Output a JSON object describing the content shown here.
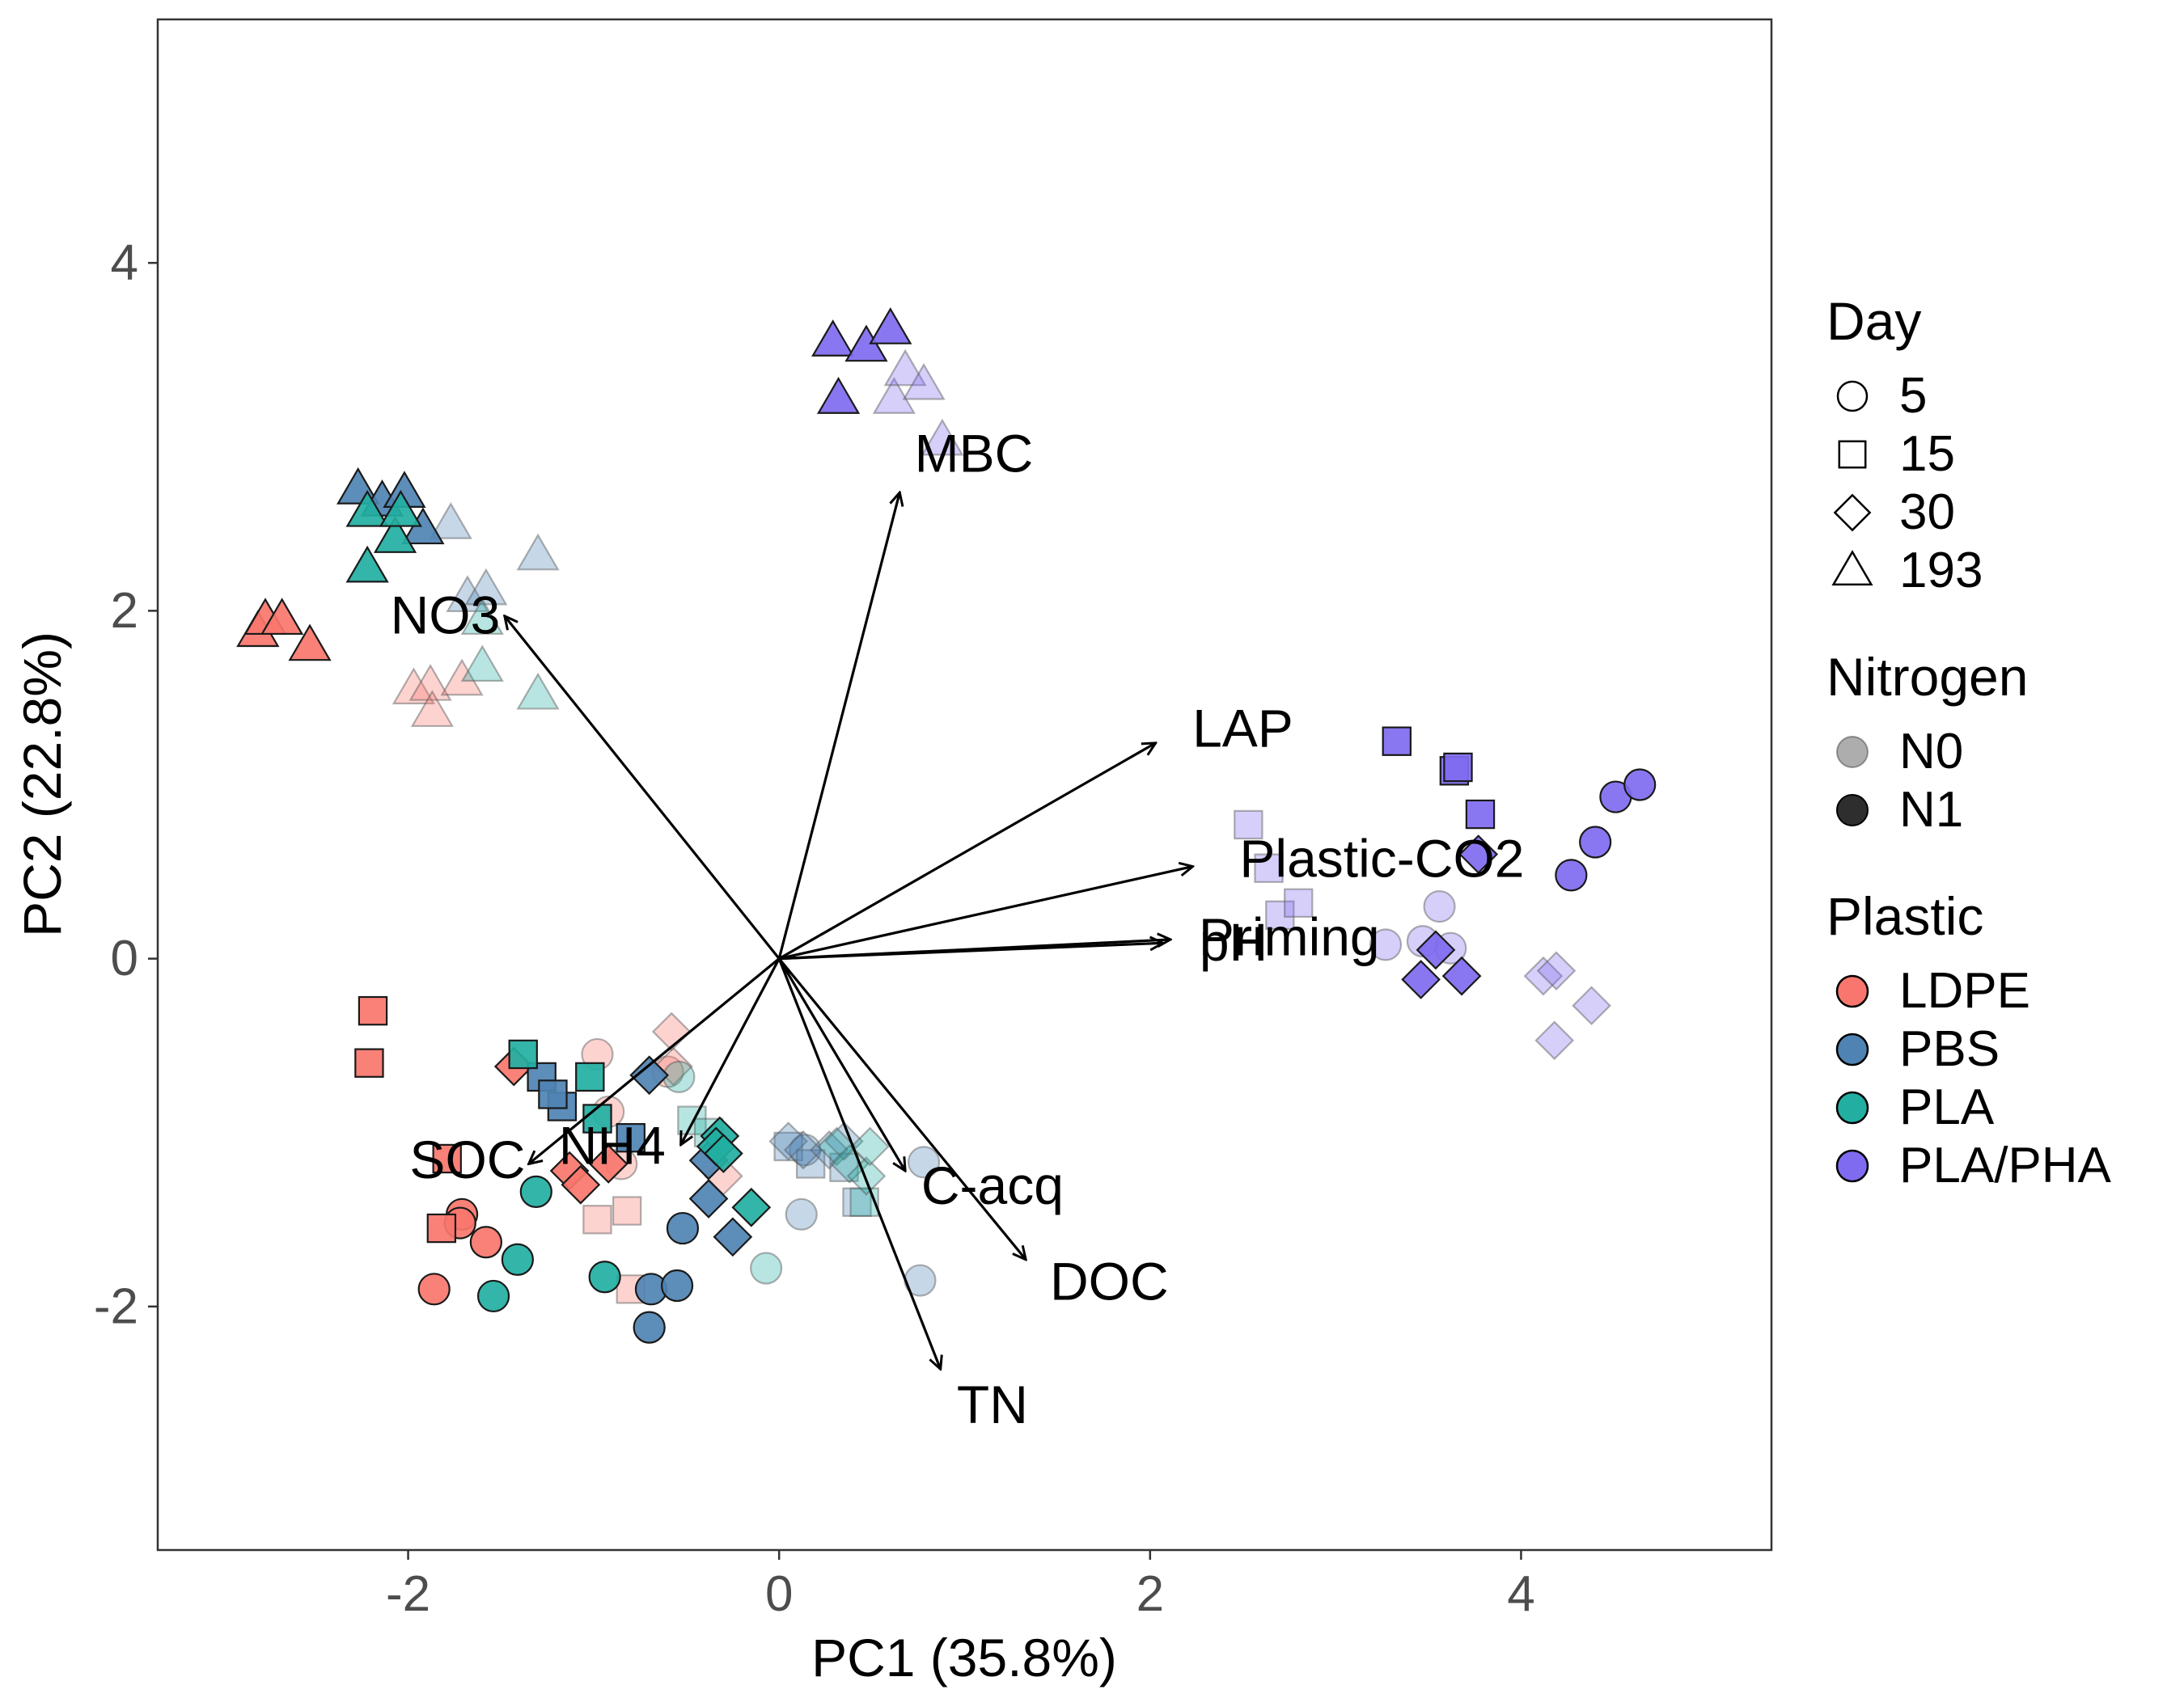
{
  "colors": {
    "LDPE": "#F8766D",
    "PBS": "#4F83B3",
    "PLA": "#22AFA2",
    "PLA/PHA": "#7F6BF0",
    "axis": "#333333",
    "ticks": "#4d4d4d",
    "background": "#ffffff"
  },
  "chart_data": {
    "type": "scatter",
    "subtype": "PCA biplot",
    "xlabel": "PC1 (35.8%)",
    "ylabel": "PC2 (22.8%)",
    "xlim": [
      -3.35,
      5.35
    ],
    "ylim": [
      -3.4,
      5.4
    ],
    "xticks": [
      -2,
      0,
      2,
      4
    ],
    "yticks": [
      -2,
      0,
      2,
      4
    ],
    "xtick_labels": [
      "-2",
      "0",
      "2",
      "4"
    ],
    "ytick_labels": [
      "-2",
      "0",
      "2",
      "4"
    ],
    "grid": false,
    "legend_position": "right",
    "legends": [
      {
        "title": "Day",
        "kind": "shape",
        "entries": [
          {
            "label": "5",
            "shape": "circle"
          },
          {
            "label": "15",
            "shape": "square"
          },
          {
            "label": "30",
            "shape": "diamond"
          },
          {
            "label": "193",
            "shape": "triangle"
          }
        ]
      },
      {
        "title": "Nitrogen",
        "kind": "alpha",
        "entries": [
          {
            "label": "N0",
            "alpha": 0.35
          },
          {
            "label": "N1",
            "alpha": 1.0
          }
        ]
      },
      {
        "title": "Plastic",
        "kind": "color",
        "entries": [
          {
            "label": "LDPE",
            "color": "#F8766D"
          },
          {
            "label": "PBS",
            "color": "#4F83B3"
          },
          {
            "label": "PLA",
            "color": "#22AFA2"
          },
          {
            "label": "PLA/PHA",
            "color": "#7F6BF0"
          }
        ]
      }
    ],
    "loadings": [
      {
        "label": "MBC",
        "x": 0.65,
        "y": 2.68,
        "label_x": 1.05,
        "label_y": 2.88
      },
      {
        "label": "NO3",
        "x": -1.48,
        "y": 1.97,
        "label_x": -1.8,
        "label_y": 1.95
      },
      {
        "label": "LAP",
        "x": 2.03,
        "y": 1.24,
        "label_x": 2.5,
        "label_y": 1.3
      },
      {
        "label": "Plastic-CO2",
        "x": 2.23,
        "y": 0.53,
        "label_x": 3.25,
        "label_y": 0.55
      },
      {
        "label": "Priming",
        "x": 2.11,
        "y": 0.11,
        "label_x": 2.75,
        "label_y": 0.1
      },
      {
        "label": "pH",
        "x": 2.07,
        "y": 0.09,
        "label_x": 2.45,
        "label_y": 0.07
      },
      {
        "label": "C-acq",
        "x": 0.68,
        "y": -1.22,
        "label_x": 1.15,
        "label_y": -1.33
      },
      {
        "label": "DOC",
        "x": 1.33,
        "y": -1.73,
        "label_x": 1.78,
        "label_y": -1.88
      },
      {
        "label": "TN",
        "x": 0.87,
        "y": -2.36,
        "label_x": 1.15,
        "label_y": -2.59
      },
      {
        "label": "SOC",
        "x": -1.35,
        "y": -1.18,
        "label_x": -1.68,
        "label_y": -1.18
      },
      {
        "label": "NH4",
        "x": -0.53,
        "y": -1.07,
        "label_x": -0.9,
        "label_y": -1.1
      }
    ],
    "series": [
      {
        "plastic": "LDPE",
        "day": "5",
        "nitrogen": "N0",
        "points": [
          [
            -0.98,
            -0.55
          ],
          [
            -0.92,
            -0.88
          ],
          [
            -0.85,
            -1.18
          ],
          [
            -0.6,
            -0.65
          ]
        ]
      },
      {
        "plastic": "LDPE",
        "day": "5",
        "nitrogen": "N1",
        "points": [
          [
            -1.86,
            -1.9
          ],
          [
            -1.71,
            -1.47
          ],
          [
            -1.72,
            -1.52
          ],
          [
            -1.58,
            -1.63
          ]
        ]
      },
      {
        "plastic": "LDPE",
        "day": "15",
        "nitrogen": "N0",
        "points": [
          [
            -0.98,
            -1.5
          ],
          [
            -0.82,
            -1.45
          ],
          [
            -0.8,
            -1.9
          ]
        ]
      },
      {
        "plastic": "LDPE",
        "day": "15",
        "nitrogen": "N1",
        "points": [
          [
            -2.19,
            -0.3
          ],
          [
            -2.21,
            -0.6
          ],
          [
            -1.79,
            -1.15
          ],
          [
            -1.82,
            -1.55
          ]
        ]
      },
      {
        "plastic": "LDPE",
        "day": "30",
        "nitrogen": "N0",
        "points": [
          [
            -0.58,
            -0.42
          ],
          [
            -0.57,
            -0.62
          ],
          [
            -0.3,
            -1.25
          ]
        ]
      },
      {
        "plastic": "LDPE",
        "day": "30",
        "nitrogen": "N1",
        "points": [
          [
            -1.43,
            -0.62
          ],
          [
            -1.13,
            -1.22
          ],
          [
            -1.07,
            -1.3
          ],
          [
            -0.92,
            -1.18
          ]
        ]
      },
      {
        "plastic": "LDPE",
        "day": "193",
        "nitrogen": "N0",
        "points": [
          [
            -1.97,
            1.55
          ],
          [
            -1.88,
            1.57
          ],
          [
            -1.87,
            1.42
          ],
          [
            -1.71,
            1.6
          ]
        ]
      },
      {
        "plastic": "LDPE",
        "day": "193",
        "nitrogen": "N1",
        "points": [
          [
            -2.81,
            1.88
          ],
          [
            -2.77,
            1.95
          ],
          [
            -2.68,
            1.95
          ],
          [
            -2.53,
            1.8
          ]
        ]
      },
      {
        "plastic": "PBS",
        "day": "5",
        "nitrogen": "N0",
        "points": [
          [
            0.14,
            -1.1
          ],
          [
            0.12,
            -1.47
          ],
          [
            0.78,
            -1.17
          ],
          [
            0.76,
            -1.85
          ]
        ]
      },
      {
        "plastic": "PBS",
        "day": "5",
        "nitrogen": "N1",
        "points": [
          [
            -0.69,
            -1.9
          ],
          [
            -0.55,
            -1.88
          ],
          [
            -0.52,
            -1.55
          ],
          [
            -0.7,
            -2.12
          ]
        ]
      },
      {
        "plastic": "PBS",
        "day": "15",
        "nitrogen": "N0",
        "points": [
          [
            0.05,
            -1.08
          ],
          [
            0.17,
            -1.18
          ],
          [
            0.42,
            -1.4
          ],
          [
            0.35,
            -1.2
          ]
        ]
      },
      {
        "plastic": "PBS",
        "day": "15",
        "nitrogen": "N1",
        "points": [
          [
            -1.28,
            -0.68
          ],
          [
            -1.17,
            -0.85
          ],
          [
            -1.22,
            -0.78
          ],
          [
            -0.8,
            -1.03
          ]
        ]
      },
      {
        "plastic": "PBS",
        "day": "30",
        "nitrogen": "N0",
        "points": [
          [
            0.05,
            -1.05
          ],
          [
            0.13,
            -1.1
          ],
          [
            0.27,
            -1.1
          ],
          [
            0.35,
            -1.05
          ]
        ]
      },
      {
        "plastic": "PBS",
        "day": "30",
        "nitrogen": "N1",
        "points": [
          [
            -0.7,
            -0.67
          ],
          [
            -0.38,
            -1.16
          ],
          [
            -0.38,
            -1.38
          ],
          [
            -0.25,
            -1.6
          ]
        ]
      },
      {
        "plastic": "PBS",
        "day": "193",
        "nitrogen": "N0",
        "points": [
          [
            -1.77,
            2.5
          ],
          [
            -1.68,
            2.08
          ],
          [
            -1.58,
            2.12
          ],
          [
            -1.3,
            2.32
          ]
        ]
      },
      {
        "plastic": "PBS",
        "day": "193",
        "nitrogen": "N1",
        "points": [
          [
            -2.27,
            2.7
          ],
          [
            -2.14,
            2.63
          ],
          [
            -2.02,
            2.68
          ],
          [
            -1.92,
            2.47
          ]
        ]
      },
      {
        "plastic": "PLA",
        "day": "5",
        "nitrogen": "N0",
        "points": [
          [
            -0.54,
            -0.68
          ],
          [
            -0.07,
            -1.78
          ]
        ]
      },
      {
        "plastic": "PLA",
        "day": "5",
        "nitrogen": "N1",
        "points": [
          [
            -1.31,
            -1.34
          ],
          [
            -1.41,
            -1.73
          ],
          [
            -1.54,
            -1.94
          ],
          [
            -0.94,
            -1.83
          ]
        ]
      },
      {
        "plastic": "PLA",
        "day": "15",
        "nitrogen": "N0",
        "points": [
          [
            -0.47,
            -0.93
          ],
          [
            -0.38,
            -1.0
          ],
          [
            0.46,
            -1.4
          ]
        ]
      },
      {
        "plastic": "PLA",
        "day": "15",
        "nitrogen": "N1",
        "points": [
          [
            -1.38,
            -0.55
          ],
          [
            -1.02,
            -0.68
          ],
          [
            -0.98,
            -0.92
          ]
        ]
      },
      {
        "plastic": "PLA",
        "day": "30",
        "nitrogen": "N0",
        "points": [
          [
            0.31,
            -1.08
          ],
          [
            0.38,
            -1.18
          ],
          [
            0.47,
            -1.25
          ],
          [
            0.49,
            -1.08
          ]
        ]
      },
      {
        "plastic": "PLA",
        "day": "30",
        "nitrogen": "N1",
        "points": [
          [
            -0.32,
            -1.02
          ],
          [
            -0.34,
            -1.08
          ],
          [
            -0.3,
            -1.12
          ],
          [
            -0.15,
            -1.43
          ]
        ]
      },
      {
        "plastic": "PLA",
        "day": "193",
        "nitrogen": "N0",
        "points": [
          [
            -1.6,
            1.95
          ],
          [
            -1.6,
            1.68
          ],
          [
            -1.3,
            1.52
          ]
        ]
      },
      {
        "plastic": "PLA",
        "day": "193",
        "nitrogen": "N1",
        "points": [
          [
            -2.22,
            2.57
          ],
          [
            -2.07,
            2.42
          ],
          [
            -2.22,
            2.25
          ],
          [
            -2.04,
            2.57
          ]
        ]
      },
      {
        "plastic": "PLA/PHA",
        "day": "5",
        "nitrogen": "N0",
        "points": [
          [
            3.27,
            0.08
          ],
          [
            3.47,
            0.1
          ],
          [
            3.56,
            0.3
          ],
          [
            3.62,
            0.06
          ]
        ]
      },
      {
        "plastic": "PLA/PHA",
        "day": "5",
        "nitrogen": "N1",
        "points": [
          [
            4.27,
            0.48
          ],
          [
            4.4,
            0.67
          ],
          [
            4.51,
            0.93
          ],
          [
            4.64,
            1.0
          ]
        ]
      },
      {
        "plastic": "PLA/PHA",
        "day": "15",
        "nitrogen": "N0",
        "points": [
          [
            2.53,
            0.77
          ],
          [
            2.64,
            0.52
          ],
          [
            2.7,
            0.25
          ],
          [
            2.8,
            0.32
          ]
        ]
      },
      {
        "plastic": "PLA/PHA",
        "day": "15",
        "nitrogen": "N1",
        "points": [
          [
            3.33,
            1.25
          ],
          [
            3.64,
            1.08
          ],
          [
            3.66,
            1.1
          ],
          [
            3.78,
            0.83
          ]
        ]
      },
      {
        "plastic": "PLA/PHA",
        "day": "30",
        "nitrogen": "N0",
        "points": [
          [
            4.12,
            -0.1
          ],
          [
            4.19,
            -0.07
          ],
          [
            4.38,
            -0.27
          ],
          [
            4.18,
            -0.47
          ]
        ]
      },
      {
        "plastic": "PLA/PHA",
        "day": "30",
        "nitrogen": "N1",
        "points": [
          [
            3.46,
            -0.12
          ],
          [
            3.54,
            0.05
          ],
          [
            3.68,
            -0.1
          ],
          [
            3.77,
            0.6
          ]
        ]
      },
      {
        "plastic": "PLA/PHA",
        "day": "193",
        "nitrogen": "N0",
        "points": [
          [
            0.62,
            3.22
          ],
          [
            0.68,
            3.38
          ],
          [
            0.78,
            3.3
          ],
          [
            0.88,
            2.98
          ]
        ]
      },
      {
        "plastic": "PLA/PHA",
        "day": "193",
        "nitrogen": "N1",
        "points": [
          [
            0.29,
            3.55
          ],
          [
            0.47,
            3.52
          ],
          [
            0.6,
            3.62
          ],
          [
            0.32,
            3.22
          ]
        ]
      }
    ]
  }
}
